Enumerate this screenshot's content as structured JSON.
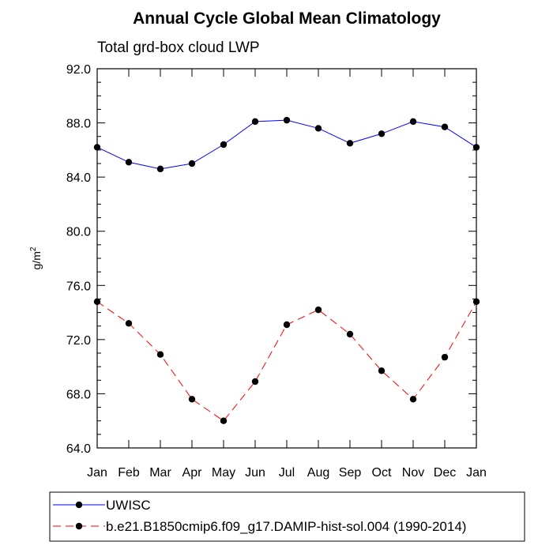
{
  "chart_data": {
    "type": "line",
    "title": "Annual Cycle Global Mean Climatology",
    "subtitle": "Total grd-box cloud LWP",
    "xlabel": "",
    "ylabel": "g/m",
    "ylabel_sup": "2",
    "categories": [
      "Jan",
      "Feb",
      "Mar",
      "Apr",
      "May",
      "Jun",
      "Jul",
      "Aug",
      "Sep",
      "Oct",
      "Nov",
      "Dec",
      "Jan"
    ],
    "ylim": [
      64.0,
      92.0
    ],
    "yticks": [
      "64.0",
      "68.0",
      "72.0",
      "76.0",
      "80.0",
      "84.0",
      "88.0",
      "92.0"
    ],
    "grid": false,
    "legend_position": "bottom",
    "series": [
      {
        "name": "UWISC",
        "color": "#0000ff",
        "dash": "solid",
        "values": [
          86.2,
          85.1,
          84.6,
          85.0,
          86.4,
          88.1,
          88.2,
          87.6,
          86.5,
          87.2,
          88.1,
          87.7,
          86.2
        ]
      },
      {
        "name": "b.e21.B1850cmip6.f09_g17.DAMIP-hist-sol.004 (1990-2014)",
        "color": "#ff0000",
        "dash": "dashed",
        "values": [
          74.8,
          73.2,
          70.9,
          67.6,
          66.0,
          68.9,
          73.1,
          74.2,
          72.4,
          69.7,
          67.6,
          70.7,
          74.8
        ]
      }
    ]
  }
}
